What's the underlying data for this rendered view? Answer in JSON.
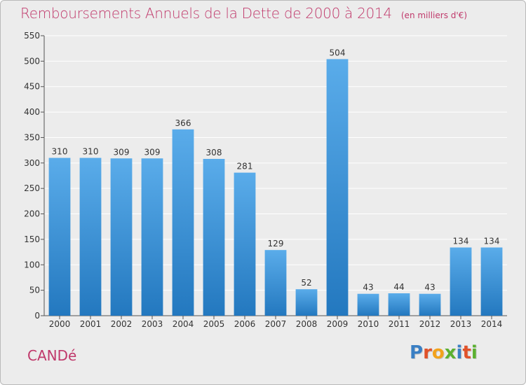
{
  "chart_data": {
    "type": "bar",
    "title": "Remboursements Annuels de la Dette de 2000 à 2014",
    "subtitle": "(en milliers d'€)",
    "categories": [
      "2000",
      "2001",
      "2002",
      "2003",
      "2004",
      "2005",
      "2006",
      "2007",
      "2008",
      "2009",
      "2010",
      "2011",
      "2012",
      "2013",
      "2014"
    ],
    "values": [
      310,
      310,
      309,
      309,
      366,
      308,
      281,
      129,
      52,
      504,
      43,
      44,
      43,
      134,
      134
    ],
    "data_labels": [
      "310",
      "310",
      "309",
      "309",
      "366",
      "308",
      "281",
      "129",
      "52",
      "504",
      "43",
      "44",
      "43",
      "134",
      "134"
    ],
    "ylim": [
      0,
      550
    ],
    "yticks": [
      "0",
      "50",
      "100",
      "150",
      "200",
      "250",
      "300",
      "350",
      "400",
      "450",
      "500",
      "550"
    ],
    "grid": true,
    "colors": {
      "bar_light": "#5aacea",
      "bar_dark": "#2378bf",
      "grid": "#ffffff",
      "background": "#ececec",
      "title": "#c0396b"
    }
  },
  "footer": {
    "city": "CANDé",
    "logo_letters": [
      "P",
      "r",
      "o",
      "x",
      "i",
      "t",
      "i"
    ],
    "logo_colors": [
      "#3a7fc4",
      "#e0522a",
      "#f2a21c",
      "#5bb030",
      "#3a7fc4",
      "#e0522a",
      "#5bb030"
    ]
  }
}
